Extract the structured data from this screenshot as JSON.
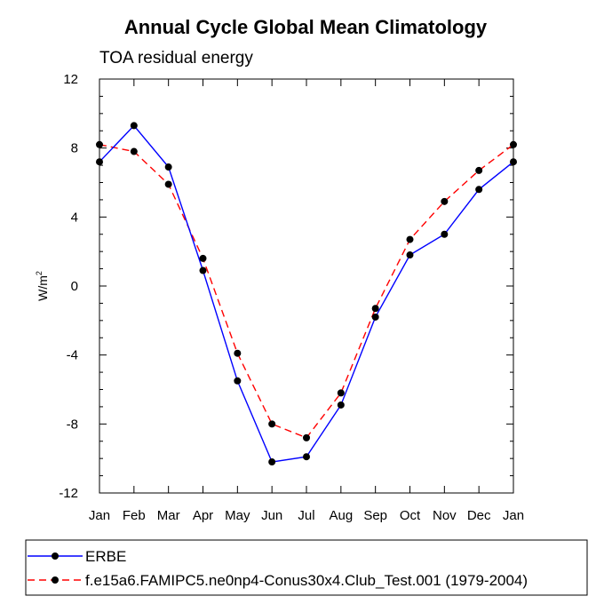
{
  "chart_data": {
    "type": "line",
    "title": "Annual Cycle Global Mean Climatology",
    "subtitle": "TOA residual energy",
    "xlabel": "",
    "ylabel": "W/m",
    "ylabel_superscript": "2",
    "categories": [
      "Jan",
      "Feb",
      "Mar",
      "Apr",
      "May",
      "Jun",
      "Jul",
      "Aug",
      "Sep",
      "Oct",
      "Nov",
      "Dec",
      "Jan"
    ],
    "ylim": [
      -12,
      12
    ],
    "yticks": [
      "-12",
      "-8",
      "-4",
      "0",
      "4",
      "8",
      "12"
    ],
    "grid": false,
    "legend_position": "bottom",
    "series": [
      {
        "name": "ERBE",
        "color": "#0000ff",
        "line_style": "solid",
        "marker": "filled-circle",
        "values": [
          7.2,
          9.3,
          6.9,
          0.9,
          -5.5,
          -10.2,
          -9.9,
          -6.9,
          -1.8,
          1.8,
          3.0,
          5.6,
          7.2
        ]
      },
      {
        "name": "f.e15a6.FAMIPC5.ne0np4-Conus30x4.Club_Test.001 (1979-2004)",
        "color": "#ff0000",
        "line_style": "dashed",
        "marker": "filled-circle",
        "values": [
          8.2,
          7.8,
          5.9,
          1.6,
          -3.9,
          -8.0,
          -8.8,
          -6.2,
          -1.3,
          2.7,
          4.9,
          6.7,
          8.2
        ]
      }
    ]
  }
}
